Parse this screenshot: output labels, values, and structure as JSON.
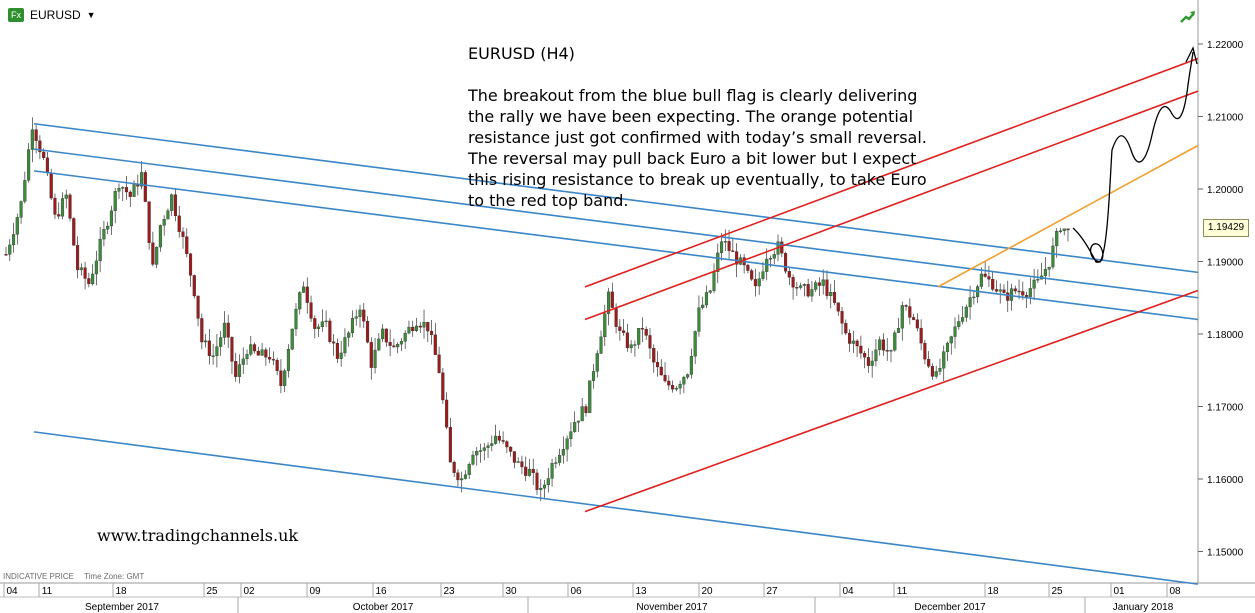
{
  "header": {
    "symbol": "EURUSD",
    "fx_badge": "Fx"
  },
  "annotation": {
    "title": "EURUSD (H4)",
    "body": "The breakout from the blue bull flag is clearly delivering\nthe rally we have been expecting. The orange potential\nresistance just got confirmed with today’s small reversal.\nThe reversal may pull back Euro a bit lower but I expect\nthis rising resistance to break up eventually, to take Euro\nto the red top band."
  },
  "website": "www.tradingchannels.uk",
  "footer_info": {
    "price_type": "INDICATIVE PRICE",
    "timezone": "Time Zone: GMT"
  },
  "last_price": "1.19429",
  "colors": {
    "candle_up": "#3d8a3d",
    "candle_down": "#9b1c1c",
    "blue_channel": "#3a86c8",
    "red_channel": "#e0201d",
    "orange_line": "#f0a030",
    "projection": "#000000"
  },
  "chart_data": {
    "type": "candlestick",
    "title": "EURUSD (H4)",
    "y_axis": {
      "range": [
        1.145,
        1.225
      ],
      "ticks": [
        "1.15000",
        "1.16000",
        "1.17000",
        "1.18000",
        "1.19000",
        "1.20000",
        "1.21000",
        "1.22000"
      ]
    },
    "x_axis": {
      "day_ticks": [
        "04",
        "11",
        "18",
        "25",
        "02",
        "09",
        "16",
        "23",
        "30",
        "06",
        "13",
        "20",
        "27",
        "04",
        "11",
        "18",
        "25",
        "01",
        "08"
      ],
      "months": [
        "September 2017",
        "October 2017",
        "November 2017",
        "December 2017",
        "January 2018"
      ]
    },
    "price_path": [
      [
        0,
        1.191
      ],
      [
        4,
        1.198
      ],
      [
        7,
        1.209
      ],
      [
        10,
        1.204
      ],
      [
        13,
        1.196
      ],
      [
        16,
        1.199
      ],
      [
        19,
        1.189
      ],
      [
        22,
        1.187
      ],
      [
        26,
        1.194
      ],
      [
        30,
        1.201
      ],
      [
        33,
        1.199
      ],
      [
        36,
        1.202
      ],
      [
        39,
        1.189
      ],
      [
        41,
        1.195
      ],
      [
        44,
        1.199
      ],
      [
        47,
        1.193
      ],
      [
        50,
        1.186
      ],
      [
        52,
        1.179
      ],
      [
        55,
        1.177
      ],
      [
        58,
        1.181
      ],
      [
        61,
        1.174
      ],
      [
        64,
        1.178
      ],
      [
        67,
        1.177
      ],
      [
        70,
        1.177
      ],
      [
        73,
        1.173
      ],
      [
        76,
        1.181
      ],
      [
        79,
        1.187
      ],
      [
        82,
        1.181
      ],
      [
        85,
        1.181
      ],
      [
        88,
        1.177
      ],
      [
        91,
        1.18
      ],
      [
        94,
        1.184
      ],
      [
        97,
        1.176
      ],
      [
        100,
        1.18
      ],
      [
        103,
        1.178
      ],
      [
        106,
        1.18
      ],
      [
        109,
        1.182
      ],
      [
        112,
        1.181
      ],
      [
        115,
        1.175
      ],
      [
        118,
        1.162
      ],
      [
        121,
        1.16
      ],
      [
        124,
        1.164
      ],
      [
        127,
        1.164
      ],
      [
        130,
        1.166
      ],
      [
        133,
        1.164
      ],
      [
        136,
        1.162
      ],
      [
        139,
        1.161
      ],
      [
        142,
        1.158
      ],
      [
        145,
        1.162
      ],
      [
        148,
        1.165
      ],
      [
        151,
        1.168
      ],
      [
        154,
        1.17
      ],
      [
        157,
        1.178
      ],
      [
        160,
        1.185
      ],
      [
        163,
        1.18
      ],
      [
        166,
        1.178
      ],
      [
        169,
        1.181
      ],
      [
        172,
        1.176
      ],
      [
        175,
        1.173
      ],
      [
        178,
        1.173
      ],
      [
        181,
        1.175
      ],
      [
        184,
        1.183
      ],
      [
        187,
        1.186
      ],
      [
        190,
        1.193
      ],
      [
        193,
        1.191
      ],
      [
        196,
        1.189
      ],
      [
        199,
        1.186
      ],
      [
        202,
        1.191
      ],
      [
        205,
        1.192
      ],
      [
        208,
        1.188
      ],
      [
        211,
        1.186
      ],
      [
        214,
        1.186
      ],
      [
        217,
        1.187
      ],
      [
        220,
        1.184
      ],
      [
        223,
        1.18
      ],
      [
        226,
        1.178
      ],
      [
        229,
        1.176
      ],
      [
        232,
        1.179
      ],
      [
        235,
        1.177
      ],
      [
        238,
        1.184
      ],
      [
        241,
        1.182
      ],
      [
        244,
        1.177
      ],
      [
        247,
        1.174
      ],
      [
        250,
        1.178
      ],
      [
        253,
        1.182
      ],
      [
        256,
        1.185
      ],
      [
        259,
        1.188
      ],
      [
        262,
        1.187
      ],
      [
        265,
        1.185
      ],
      [
        268,
        1.186
      ],
      [
        271,
        1.186
      ],
      [
        274,
        1.187
      ],
      [
        277,
        1.19
      ],
      [
        280,
        1.195
      ],
      [
        282,
        1.194
      ]
    ],
    "trendlines": [
      {
        "color": "blue",
        "from": [
          "04 Sep",
          1.209
        ],
        "to": [
          "08 Jan",
          1.1885
        ]
      },
      {
        "color": "blue",
        "from": [
          "04 Sep",
          1.2055
        ],
        "to": [
          "08 Jan",
          1.185
        ]
      },
      {
        "color": "blue",
        "from": [
          "04 Sep",
          1.2025
        ],
        "to": [
          "08 Jan",
          1.182
        ]
      },
      {
        "color": "blue",
        "from": [
          "04 Sep",
          1.1665
        ],
        "to": [
          "08 Jan",
          1.1455
        ]
      },
      {
        "color": "red",
        "from": [
          "06 Nov",
          1.1865
        ],
        "to": [
          "08 Jan",
          1.218
        ]
      },
      {
        "color": "red",
        "from": [
          "06 Nov",
          1.182
        ],
        "to": [
          "08 Jan",
          1.2135
        ]
      },
      {
        "color": "red",
        "from": [
          "06 Nov",
          1.1555
        ],
        "to": [
          "08 Jan",
          1.186
        ]
      },
      {
        "color": "orange",
        "from": [
          "12 Dec",
          1.1865
        ],
        "to": [
          "08 Jan",
          1.206
        ]
      }
    ]
  }
}
